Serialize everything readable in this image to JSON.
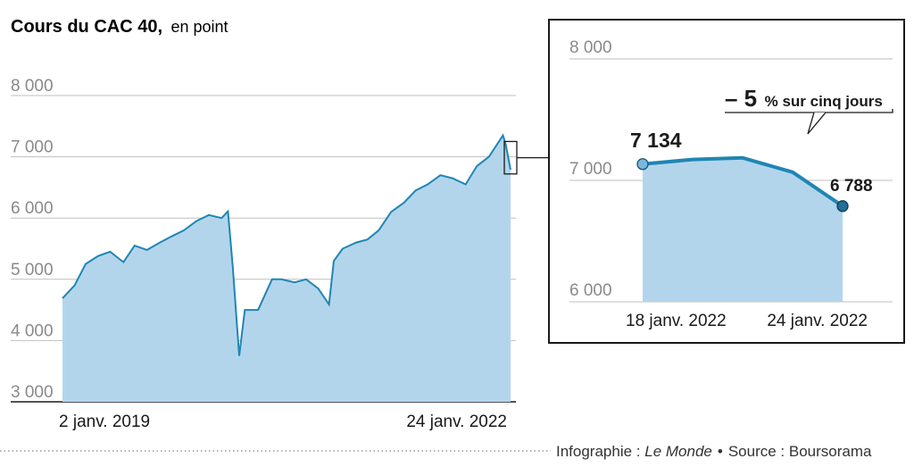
{
  "title": {
    "main": "Cours du CAC 40,",
    "sub": "en point"
  },
  "footer": {
    "credit_prefix": "Infographie : ",
    "credit_name": "Le Monde",
    "separator": "•",
    "source": "Source : Boursorama"
  },
  "colors": {
    "line": "#1f86b3",
    "area": "#b3d5ec",
    "grid": "#bfbfbf",
    "frame": "#1a1a1a",
    "dot": "#79b8dc",
    "dot_end": "#1f6f96"
  },
  "chart_data": [
    {
      "type": "area",
      "title": "Cours du CAC 40, en point",
      "xlabel": "",
      "ylabel": "",
      "ylim": [
        3000,
        8000
      ],
      "yticks": [
        {
          "value": 8000,
          "label": "8 000"
        },
        {
          "value": 7000,
          "label": "7 000"
        },
        {
          "value": 6000,
          "label": "6 000"
        },
        {
          "value": 5000,
          "label": "5 000"
        },
        {
          "value": 4000,
          "label": "4 000"
        },
        {
          "value": 3000,
          "label": "3 000"
        }
      ],
      "xticks": [
        {
          "value": "2019-01-02",
          "label": "2 janv. 2019"
        },
        {
          "value": "2022-01-24",
          "label": "24 janv. 2022"
        }
      ],
      "grid": true,
      "series": [
        {
          "x": [
            "2019-01-02",
            "2019-02-01",
            "2019-03-01",
            "2019-04-01",
            "2019-05-01",
            "2019-06-03",
            "2019-07-01",
            "2019-08-01",
            "2019-09-02",
            "2019-10-01",
            "2019-11-01",
            "2019-12-02",
            "2020-01-02",
            "2020-02-03",
            "2020-02-19",
            "2020-03-02",
            "2020-03-18",
            "2020-04-01",
            "2020-05-04",
            "2020-06-08",
            "2020-07-01",
            "2020-08-03",
            "2020-09-01",
            "2020-10-01",
            "2020-10-28",
            "2020-11-09",
            "2020-12-01",
            "2021-01-04",
            "2021-02-01",
            "2021-03-01",
            "2021-04-01",
            "2021-05-03",
            "2021-06-01",
            "2021-07-01",
            "2021-08-02",
            "2021-09-01",
            "2021-10-04",
            "2021-11-01",
            "2021-12-01",
            "2022-01-05",
            "2022-01-12",
            "2022-01-24"
          ],
          "values": [
            4690,
            4900,
            5250,
            5380,
            5450,
            5280,
            5550,
            5480,
            5600,
            5700,
            5800,
            5950,
            6050,
            6000,
            6110,
            5200,
            3750,
            4500,
            4500,
            5000,
            5000,
            4950,
            5000,
            4850,
            4590,
            5300,
            5500,
            5600,
            5650,
            5800,
            6100,
            6250,
            6450,
            6550,
            6700,
            6650,
            6550,
            6850,
            7000,
            7350,
            7200,
            6788
          ]
        }
      ]
    },
    {
      "type": "area",
      "title": "",
      "ylim": [
        6000,
        8000
      ],
      "yticks": [
        {
          "value": 8000,
          "label": "8 000"
        },
        {
          "value": 7000,
          "label": "7 000"
        },
        {
          "value": 6000,
          "label": "6 000"
        }
      ],
      "xticks": [
        {
          "value": "2022-01-18",
          "label": "18 janv. 2022"
        },
        {
          "value": "2022-01-24",
          "label": "24 janv. 2022"
        }
      ],
      "grid": true,
      "series": [
        {
          "x": [
            "2022-01-18",
            "2022-01-19",
            "2022-01-20",
            "2022-01-21",
            "2022-01-24"
          ],
          "values": [
            7134,
            7172,
            7185,
            7068,
            6788
          ]
        }
      ],
      "labels": {
        "start": "7 134",
        "end": "6 788"
      },
      "annotation": {
        "value": "– 5",
        "text": "% sur cinq jours"
      }
    }
  ]
}
